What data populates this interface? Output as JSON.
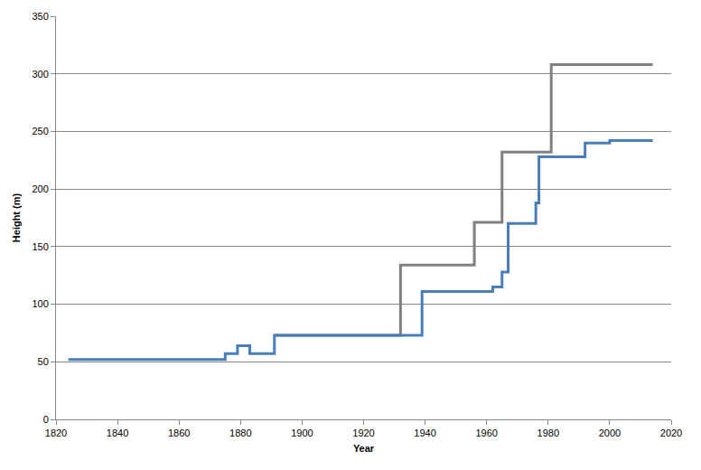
{
  "chart_data": {
    "type": "line",
    "line_style": "step",
    "x_label": "Year",
    "y_label": "Height (m)",
    "xlim": [
      1820,
      2020
    ],
    "xticks": [
      1820,
      1840,
      1860,
      1880,
      1900,
      1920,
      1940,
      1960,
      1980,
      2000,
      2020
    ],
    "ylim": [
      0,
      350
    ],
    "yticks": [
      0,
      50,
      100,
      150,
      200,
      250,
      300,
      350
    ],
    "grid": true,
    "series": [
      {
        "color": "#808080",
        "x": [
          1891,
          1932,
          1956,
          1965,
          1981,
          2014
        ],
        "values": [
          73,
          134,
          171,
          232,
          308,
          308
        ]
      },
      {
        "color": "#4a7ebb",
        "x": [
          1824,
          1875,
          1879,
          1883,
          1891,
          1939,
          1962,
          1965,
          1967,
          1976,
          1977,
          1992,
          2000,
          2014
        ],
        "values": [
          52,
          57,
          64,
          57,
          73,
          111,
          115,
          128,
          170,
          188,
          228,
          240,
          242,
          242
        ]
      }
    ]
  }
}
